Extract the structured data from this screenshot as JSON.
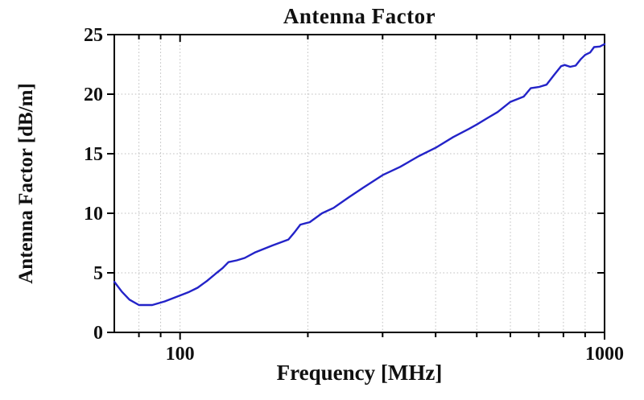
{
  "chart_data": {
    "type": "line",
    "title": "Antenna Factor",
    "xlabel": "Frequency [MHz]",
    "ylabel": "Antenna Factor [dB/m]",
    "x_scale": "log",
    "xlim": [
      70,
      1000
    ],
    "ylim": [
      0,
      25
    ],
    "x_ticks_major": [
      100,
      1000
    ],
    "x_tick_labels": [
      "100",
      "1000"
    ],
    "x_ticks_minor": [
      80,
      90,
      200,
      300,
      400,
      500,
      600,
      700,
      800,
      900
    ],
    "y_ticks": [
      0,
      5,
      10,
      15,
      20,
      25
    ],
    "y_tick_labels": [
      "0",
      "5",
      "10",
      "15",
      "20",
      "25"
    ],
    "grid": true,
    "legend": "none",
    "colors": {
      "line": "#2323c8",
      "grid": "#bdbdbd",
      "axis": "#000000",
      "text": "#101010",
      "background": "#ffffff"
    },
    "series": [
      {
        "name": "Antenna Factor",
        "points": [
          [
            70,
            4.25
          ],
          [
            73,
            3.4
          ],
          [
            76,
            2.75
          ],
          [
            80,
            2.3
          ],
          [
            86,
            2.3
          ],
          [
            92,
            2.6
          ],
          [
            100,
            3.1
          ],
          [
            105,
            3.4
          ],
          [
            110,
            3.75
          ],
          [
            116,
            4.35
          ],
          [
            122,
            5.0
          ],
          [
            126,
            5.4
          ],
          [
            130,
            5.9
          ],
          [
            136,
            6.05
          ],
          [
            142,
            6.25
          ],
          [
            150,
            6.7
          ],
          [
            165,
            7.3
          ],
          [
            180,
            7.8
          ],
          [
            186,
            8.4
          ],
          [
            192,
            9.05
          ],
          [
            202,
            9.25
          ],
          [
            216,
            10.0
          ],
          [
            230,
            10.45
          ],
          [
            250,
            11.35
          ],
          [
            270,
            12.15
          ],
          [
            300,
            13.2
          ],
          [
            330,
            13.9
          ],
          [
            365,
            14.8
          ],
          [
            400,
            15.5
          ],
          [
            440,
            16.4
          ],
          [
            480,
            17.1
          ],
          [
            500,
            17.45
          ],
          [
            530,
            18.0
          ],
          [
            560,
            18.5
          ],
          [
            600,
            19.35
          ],
          [
            625,
            19.6
          ],
          [
            645,
            19.8
          ],
          [
            670,
            20.5
          ],
          [
            700,
            20.6
          ],
          [
            730,
            20.8
          ],
          [
            760,
            21.6
          ],
          [
            790,
            22.35
          ],
          [
            805,
            22.45
          ],
          [
            830,
            22.3
          ],
          [
            855,
            22.4
          ],
          [
            880,
            22.95
          ],
          [
            900,
            23.3
          ],
          [
            925,
            23.5
          ],
          [
            945,
            23.95
          ],
          [
            975,
            24.0
          ],
          [
            1000,
            24.2
          ]
        ]
      }
    ]
  }
}
